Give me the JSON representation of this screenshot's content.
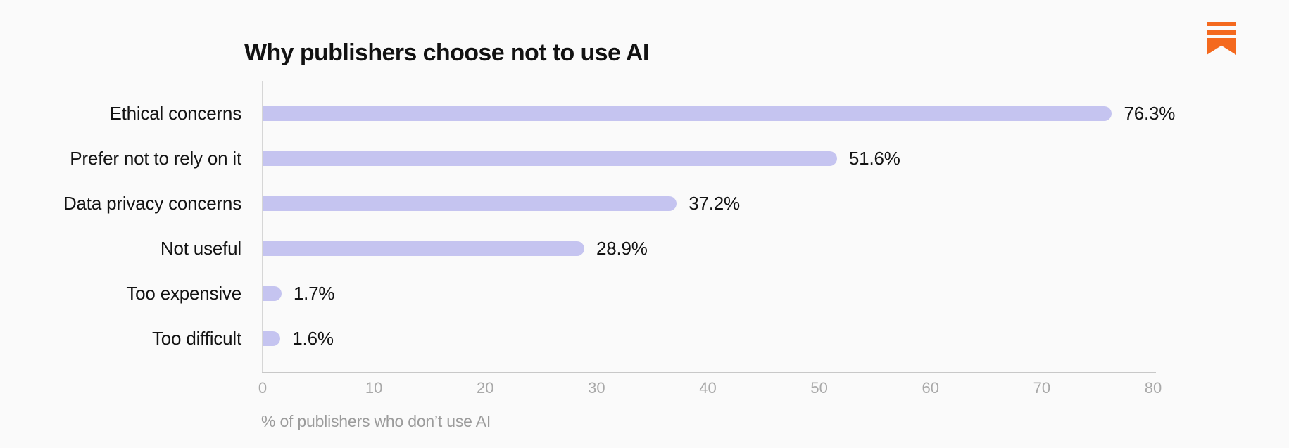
{
  "page": {
    "background": "#FAFAFA",
    "logo_color": "#F4691E"
  },
  "chart_data": {
    "type": "bar",
    "orientation": "horizontal",
    "title": "Why publishers choose not to use AI",
    "categories": [
      "Ethical concerns",
      "Prefer not to rely on it",
      "Data privacy concerns",
      "Not useful",
      "Too expensive",
      "Too difficult"
    ],
    "values": [
      76.3,
      51.6,
      37.2,
      28.9,
      1.7,
      1.6
    ],
    "value_labels": [
      "76.3%",
      "51.6%",
      "37.2%",
      "28.9%",
      "1.7%",
      "1.6%"
    ],
    "xlabel": "% of publishers who don’t use AI",
    "x_ticks": [
      0,
      10,
      20,
      30,
      40,
      50,
      60,
      70,
      80
    ],
    "xlim": [
      0,
      80
    ],
    "bar_color": "#C5C4F0",
    "text_color": "#131313",
    "tick_color": "#A8A8A8",
    "grid": false,
    "legend": false
  }
}
